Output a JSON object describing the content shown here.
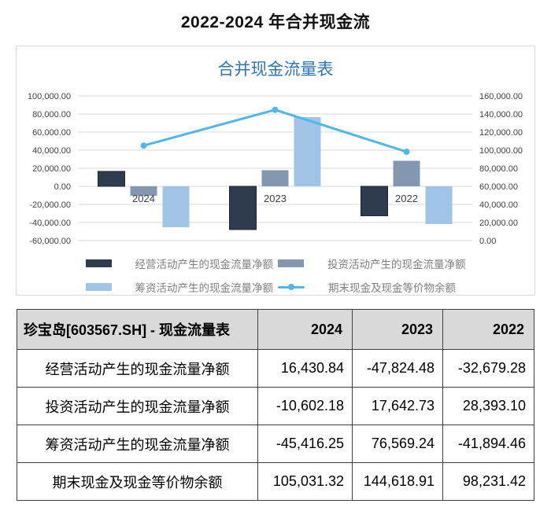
{
  "page": {
    "title": "2022-2024 年合并现金流"
  },
  "chart_data": {
    "type": "bar",
    "title": "合并现金流量表",
    "categories": [
      "2024",
      "2023",
      "2022"
    ],
    "series": [
      {
        "name": "经营活动产生的现金流量净额",
        "type": "bar",
        "axis": "left",
        "color": "#2f3b4e",
        "values": [
          16430.84,
          -47824.48,
          -32679.28
        ]
      },
      {
        "name": "投资活动产生的现金流量净额",
        "type": "bar",
        "axis": "left",
        "color": "#8497b0",
        "values": [
          -10602.18,
          17642.73,
          28393.1
        ]
      },
      {
        "name": "筹资活动产生的现金流量净额",
        "type": "bar",
        "axis": "left",
        "color": "#a0c4e6",
        "values": [
          -45416.25,
          76569.24,
          -41894.46
        ]
      },
      {
        "name": "期末现金及现金等价物余额",
        "type": "line",
        "axis": "right",
        "color": "#4fb7ea",
        "values": [
          105031.32,
          144618.91,
          98231.42
        ]
      }
    ],
    "left_axis": {
      "min": -60000,
      "max": 100000,
      "step": 20000,
      "tick_labels": [
        "100,000.00",
        "80,000.00",
        "60,000.00",
        "40,000.00",
        "20,000.00",
        "0.00",
        "-20,000.00",
        "-40,000.00",
        "-60,000.00"
      ]
    },
    "right_axis": {
      "min": 0,
      "max": 160000,
      "step": 20000,
      "tick_labels": [
        "160,000.00",
        "140,000.00",
        "120,000.00",
        "100,000.00",
        "80,000.00",
        "60,000.00",
        "40,000.00",
        "20,000.00",
        "0.00"
      ]
    },
    "grid": true,
    "legend_position": "bottom",
    "grid_color": "#d9d9d9",
    "axis_label_color": "#404040"
  },
  "table": {
    "header": {
      "title": "珍宝岛[603567.SH] - 现金流量表",
      "years": [
        "2024",
        "2023",
        "2022"
      ]
    },
    "rows": [
      {
        "label": "经营活动产生的现金流量净额",
        "values": [
          "16,430.84",
          "-47,824.48",
          "-32,679.28"
        ]
      },
      {
        "label": "投资活动产生的现金流量净额",
        "values": [
          "-10,602.18",
          "17,642.73",
          "28,393.10"
        ]
      },
      {
        "label": "筹资活动产生的现金流量净额",
        "values": [
          "-45,416.25",
          "76,569.24",
          "-41,894.46"
        ]
      },
      {
        "label": "期末现金及现金等价物余额",
        "values": [
          "105,031.32",
          "144,618.91",
          "98,231.42"
        ]
      }
    ]
  }
}
